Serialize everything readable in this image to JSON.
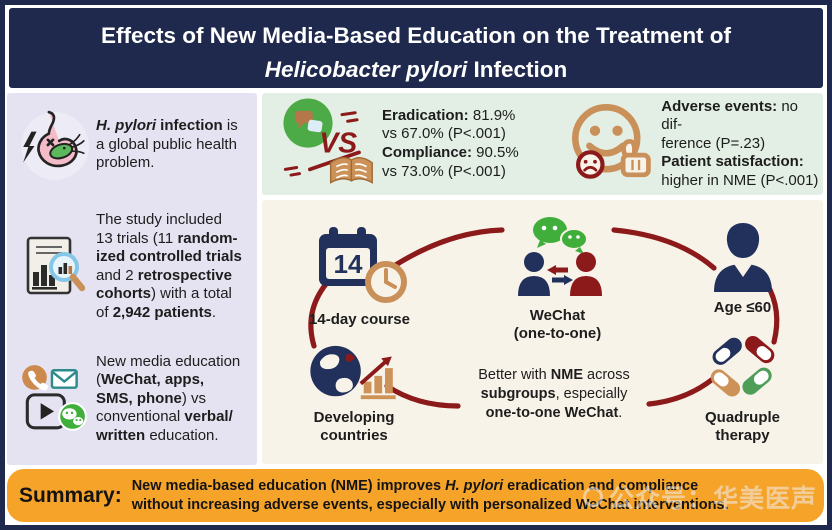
{
  "colors": {
    "navy": "#1e294d",
    "maroon": "#8c1a1a",
    "lavender_bg": "#e5e3f2",
    "green_bg": "#e3efe4",
    "cream_bg": "#f8f3e8",
    "orange_bg": "#f6a32a",
    "tan": "#c9905a",
    "wechat_green": "#3fae3b"
  },
  "title": {
    "line1": "Effects of New Media-Based Education on the Treatment of",
    "line2_runs": [
      {
        "t": "Helicobacter pylori",
        "i": true
      },
      {
        "t": " Infection"
      }
    ]
  },
  "sidebar": {
    "sections": [
      {
        "icon": "stomach-bacteria-icon",
        "runs": [
          {
            "t": "H. pylori",
            "b": true,
            "i": true
          },
          {
            "t": " infection",
            "b": true
          },
          {
            "t": " is"
          },
          {
            "br": true
          },
          {
            "t": "a global public health"
          },
          {
            "br": true
          },
          {
            "t": "problem."
          }
        ]
      },
      {
        "icon": "report-search-icon",
        "runs": [
          {
            "t": "The study included"
          },
          {
            "br": true
          },
          {
            "t": "13 trials (11 "
          },
          {
            "t": "random-",
            "b": true
          },
          {
            "br": true
          },
          {
            "t": "ized controlled trials",
            "b": true
          },
          {
            "br": true
          },
          {
            "t": "and 2 "
          },
          {
            "t": "retrospective",
            "b": true
          },
          {
            "br": true
          },
          {
            "t": "cohorts",
            "b": true
          },
          {
            "t": ") with a total"
          },
          {
            "br": true
          },
          {
            "t": "of "
          },
          {
            "t": "2,942 patients",
            "b": true
          },
          {
            "t": "."
          }
        ]
      },
      {
        "icon": "media-channels-icon",
        "runs": [
          {
            "t": "New media education"
          },
          {
            "br": true
          },
          {
            "t": "("
          },
          {
            "t": "WeChat, apps,",
            "b": true
          },
          {
            "br": true
          },
          {
            "t": "SMS, phone",
            "b": true
          },
          {
            "t": ") vs"
          },
          {
            "br": true
          },
          {
            "t": "conventional "
          },
          {
            "t": "verbal/",
            "b": true
          },
          {
            "br": true
          },
          {
            "t": "written",
            "b": true
          },
          {
            "t": " education."
          }
        ]
      }
    ]
  },
  "outcomes": {
    "vs_label": "VS",
    "efficacy_runs": [
      {
        "t": "Eradication:",
        "b": true
      },
      {
        "t": " 81.9%"
      },
      {
        "br": true
      },
      {
        "t": "vs 67.0% (P<.001)"
      },
      {
        "br": true
      },
      {
        "t": "Compliance:",
        "b": true
      },
      {
        "t": " 90.5%"
      },
      {
        "br": true
      },
      {
        "t": "vs 73.0% (P<.001)"
      }
    ],
    "safety_runs": [
      {
        "t": "Adverse events:",
        "b": true
      },
      {
        "t": " no dif-"
      },
      {
        "br": true
      },
      {
        "t": "ference (P=.23)"
      },
      {
        "br": true
      },
      {
        "t": "Patient satisfaction:",
        "b": true
      },
      {
        "br": true
      },
      {
        "t": "higher in NME (P<.001)"
      }
    ]
  },
  "diagram": {
    "calendar_number": "14",
    "nodes": {
      "course": {
        "label": "14-day course"
      },
      "wechat": {
        "label1": "WeChat",
        "label2": "(one-to-one)"
      },
      "age": {
        "label": "Age ≤60"
      },
      "globe": {
        "label1": "Developing",
        "label2": "countries"
      },
      "pills": {
        "label1": "Quadruple",
        "label2": "therapy"
      }
    },
    "center_runs": [
      {
        "t": "Better with "
      },
      {
        "t": "NME",
        "b": true
      },
      {
        "t": " across"
      },
      {
        "br": true
      },
      {
        "t": "subgroups",
        "b": true
      },
      {
        "t": ", especially"
      },
      {
        "br": true
      },
      {
        "t": "one-to-one WeChat",
        "b": true
      },
      {
        "t": "."
      }
    ]
  },
  "summary": {
    "label": "Summary:",
    "body_runs": [
      {
        "t": "New media-based education (NME) improves ",
        "b": true
      },
      {
        "t": "H. pylori",
        "b": true,
        "i": true
      },
      {
        "t": " eradication and compliance",
        "b": true
      },
      {
        "br": true
      },
      {
        "t": "without increasing adverse events, especially with personalized WeChat interventions.",
        "b": true
      }
    ]
  },
  "watermark": {
    "text": "公众号：华美医声"
  }
}
